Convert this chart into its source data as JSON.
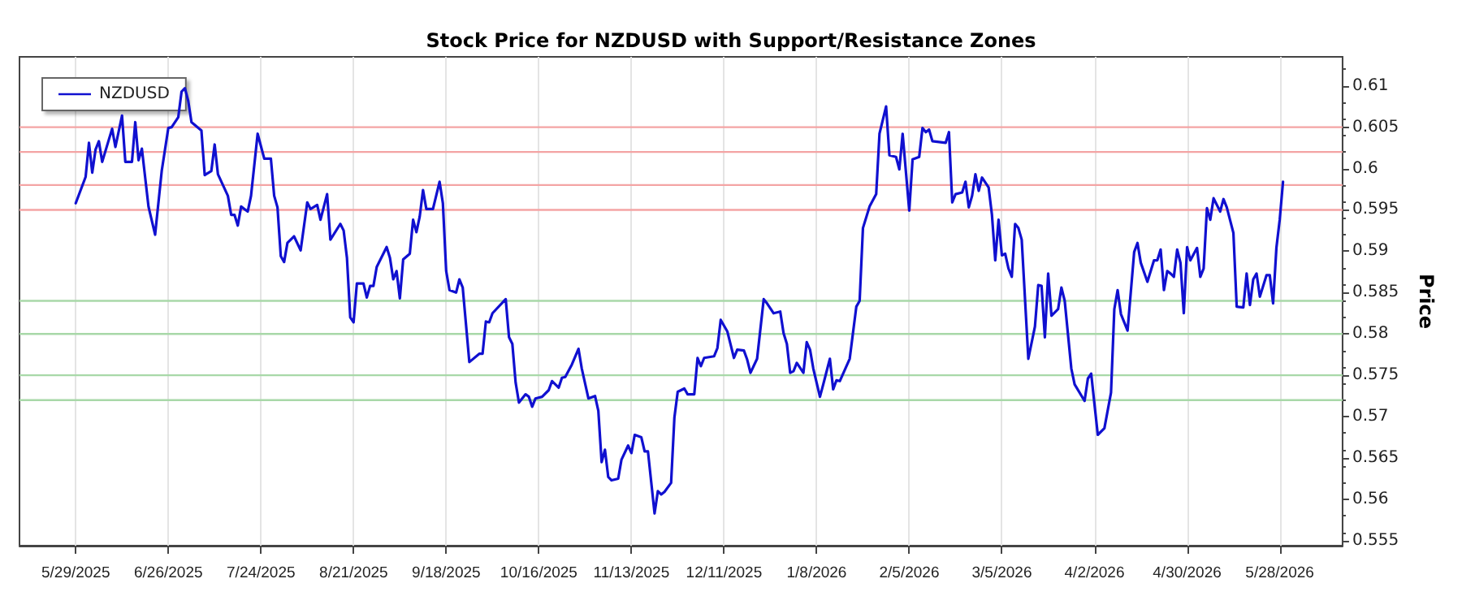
{
  "chart_data": {
    "type": "line",
    "title": "Stock Price for NZDUSD with Support/Resistance Zones",
    "ylabel": "Price",
    "x": [
      "2025-05-29",
      "2025-06-01",
      "2025-06-02",
      "2025-06-03",
      "2025-06-04",
      "2025-06-05",
      "2025-06-06",
      "2025-06-09",
      "2025-06-10",
      "2025-06-12",
      "2025-06-13",
      "2025-06-15",
      "2025-06-16",
      "2025-06-17",
      "2025-06-18",
      "2025-06-20",
      "2025-06-22",
      "2025-06-24",
      "2025-06-26",
      "2025-06-27",
      "2025-06-29",
      "2025-06-30",
      "2025-07-01",
      "2025-07-02",
      "2025-07-03",
      "2025-07-06",
      "2025-07-07",
      "2025-07-09",
      "2025-07-10",
      "2025-07-11",
      "2025-07-14",
      "2025-07-15",
      "2025-07-16",
      "2025-07-17",
      "2025-07-18",
      "2025-07-20",
      "2025-07-21",
      "2025-07-23",
      "2025-07-25",
      "2025-07-27",
      "2025-07-28",
      "2025-07-29",
      "2025-07-30",
      "2025-07-31",
      "2025-08-01",
      "2025-08-03",
      "2025-08-05",
      "2025-08-07",
      "2025-08-08",
      "2025-08-10",
      "2025-08-11",
      "2025-08-13",
      "2025-08-14",
      "2025-08-17",
      "2025-08-18",
      "2025-08-19",
      "2025-08-20",
      "2025-08-21",
      "2025-08-22",
      "2025-08-24",
      "2025-08-25",
      "2025-08-26",
      "2025-08-27",
      "2025-08-28",
      "2025-08-31",
      "2025-09-01",
      "2025-09-02",
      "2025-09-03",
      "2025-09-04",
      "2025-09-05",
      "2025-09-07",
      "2025-09-08",
      "2025-09-09",
      "2025-09-10",
      "2025-09-11",
      "2025-09-12",
      "2025-09-14",
      "2025-09-16",
      "2025-09-17",
      "2025-09-18",
      "2025-09-19",
      "2025-09-21",
      "2025-09-22",
      "2025-09-23",
      "2025-09-25",
      "2025-09-28",
      "2025-09-29",
      "2025-09-30",
      "2025-10-01",
      "2025-10-02",
      "2025-10-06",
      "2025-10-07",
      "2025-10-08",
      "2025-10-09",
      "2025-10-10",
      "2025-10-12",
      "2025-10-13",
      "2025-10-14",
      "2025-10-15",
      "2025-10-17",
      "2025-10-19",
      "2025-10-20",
      "2025-10-22",
      "2025-10-23",
      "2025-10-24",
      "2025-10-26",
      "2025-10-28",
      "2025-10-29",
      "2025-10-31",
      "2025-11-02",
      "2025-11-03",
      "2025-11-04",
      "2025-11-05",
      "2025-11-06",
      "2025-11-07",
      "2025-11-09",
      "2025-11-10",
      "2025-11-12",
      "2025-11-13",
      "2025-11-14",
      "2025-11-16",
      "2025-11-17",
      "2025-11-18",
      "2025-11-20",
      "2025-11-21",
      "2025-11-22",
      "2025-11-23",
      "2025-11-25",
      "2025-11-26",
      "2025-11-27",
      "2025-11-29",
      "2025-11-30",
      "2025-12-02",
      "2025-12-03",
      "2025-12-04",
      "2025-12-05",
      "2025-12-08",
      "2025-12-09",
      "2025-12-10",
      "2025-12-12",
      "2025-12-14",
      "2025-12-15",
      "2025-12-17",
      "2025-12-18",
      "2025-12-19",
      "2025-12-21",
      "2025-12-23",
      "2025-12-24",
      "2025-12-26",
      "2025-12-28",
      "2025-12-29",
      "2025-12-30",
      "2025-12-31",
      "2026-01-01",
      "2026-01-02",
      "2026-01-04",
      "2026-01-05",
      "2026-01-06",
      "2026-01-07",
      "2026-01-09",
      "2026-01-10",
      "2026-01-12",
      "2026-01-13",
      "2026-01-14",
      "2026-01-15",
      "2026-01-18",
      "2026-01-20",
      "2026-01-21",
      "2026-01-22",
      "2026-01-24",
      "2026-01-26",
      "2026-01-27",
      "2026-01-29",
      "2026-01-30",
      "2026-02-01",
      "2026-02-02",
      "2026-02-03",
      "2026-02-05",
      "2026-02-06",
      "2026-02-08",
      "2026-02-09",
      "2026-02-10",
      "2026-02-11",
      "2026-02-12",
      "2026-02-16",
      "2026-02-17",
      "2026-02-18",
      "2026-02-19",
      "2026-02-21",
      "2026-02-22",
      "2026-02-23",
      "2026-02-24",
      "2026-02-25",
      "2026-02-26",
      "2026-02-27",
      "2026-03-01",
      "2026-03-02",
      "2026-03-03",
      "2026-03-04",
      "2026-03-05",
      "2026-03-06",
      "2026-03-07",
      "2026-03-08",
      "2026-03-09",
      "2026-03-10",
      "2026-03-11",
      "2026-03-13",
      "2026-03-15",
      "2026-03-16",
      "2026-03-17",
      "2026-03-18",
      "2026-03-19",
      "2026-03-20",
      "2026-03-22",
      "2026-03-23",
      "2026-03-24",
      "2026-03-26",
      "2026-03-27",
      "2026-03-30",
      "2026-03-31",
      "2026-04-01",
      "2026-04-03",
      "2026-04-05",
      "2026-04-07",
      "2026-04-08",
      "2026-04-09",
      "2026-04-10",
      "2026-04-12",
      "2026-04-14",
      "2026-04-15",
      "2026-04-16",
      "2026-04-18",
      "2026-04-20",
      "2026-04-21",
      "2026-04-22",
      "2026-04-23",
      "2026-04-24",
      "2026-04-25",
      "2026-04-26",
      "2026-04-27",
      "2026-04-28",
      "2026-04-29",
      "2026-04-30",
      "2026-05-01",
      "2026-05-03",
      "2026-05-04",
      "2026-05-05",
      "2026-05-06",
      "2026-05-07",
      "2026-05-08",
      "2026-05-10",
      "2026-05-11",
      "2026-05-12",
      "2026-05-14",
      "2026-05-15",
      "2026-05-17",
      "2026-05-18",
      "2026-05-19",
      "2026-05-20",
      "2026-05-21",
      "2026-05-22",
      "2026-05-24",
      "2026-05-25",
      "2026-05-26",
      "2026-05-27",
      "2026-05-28",
      "2026-05-29"
    ],
    "series": [
      {
        "name": "NZDUSD",
        "color": "#1010d0",
        "values": [
          0.5958,
          0.599,
          0.6031,
          0.5995,
          0.6023,
          0.6033,
          0.6008,
          0.6048,
          0.6026,
          0.6064,
          0.6008,
          0.6008,
          0.6056,
          0.601,
          0.6024,
          0.5954,
          0.592,
          0.5997,
          0.6049,
          0.605,
          0.6062,
          0.6093,
          0.6097,
          0.6082,
          0.6056,
          0.6046,
          0.5992,
          0.5997,
          0.6029,
          0.5993,
          0.5967,
          0.5944,
          0.5944,
          0.5931,
          0.5954,
          0.5948,
          0.5967,
          0.6042,
          0.6012,
          0.6012,
          0.5967,
          0.5953,
          0.5894,
          0.5887,
          0.591,
          0.5918,
          0.5901,
          0.5959,
          0.5951,
          0.5956,
          0.5938,
          0.5969,
          0.5914,
          0.5933,
          0.5925,
          0.5892,
          0.582,
          0.5814,
          0.5861,
          0.5861,
          0.5844,
          0.5858,
          0.5858,
          0.5881,
          0.5905,
          0.5892,
          0.5866,
          0.5876,
          0.5843,
          0.589,
          0.5897,
          0.5938,
          0.5923,
          0.5942,
          0.5974,
          0.5951,
          0.5951,
          0.5984,
          0.5958,
          0.5876,
          0.5853,
          0.585,
          0.5866,
          0.5856,
          0.5766,
          0.5776,
          0.5776,
          0.5815,
          0.5814,
          0.5825,
          0.5842,
          0.5796,
          0.5788,
          0.5741,
          0.5717,
          0.5727,
          0.5724,
          0.5712,
          0.5722,
          0.5724,
          0.5732,
          0.5743,
          0.5735,
          0.5747,
          0.5748,
          0.5763,
          0.5782,
          0.5758,
          0.5722,
          0.5725,
          0.5707,
          0.5645,
          0.566,
          0.5627,
          0.5623,
          0.5625,
          0.5648,
          0.5665,
          0.5656,
          0.5678,
          0.5675,
          0.5658,
          0.5658,
          0.5583,
          0.561,
          0.5606,
          0.5609,
          0.562,
          0.5699,
          0.573,
          0.5734,
          0.5727,
          0.5727,
          0.5771,
          0.5761,
          0.5771,
          0.5773,
          0.5783,
          0.5817,
          0.5803,
          0.5771,
          0.5781,
          0.578,
          0.5769,
          0.5753,
          0.577,
          0.5842,
          0.5837,
          0.5825,
          0.5827,
          0.5801,
          0.5788,
          0.5753,
          0.5755,
          0.5765,
          0.5753,
          0.579,
          0.5781,
          0.5758,
          0.5724,
          0.5739,
          0.577,
          0.5733,
          0.5744,
          0.5743,
          0.577,
          0.5833,
          0.584,
          0.5928,
          0.5954,
          0.5969,
          0.6042,
          0.6075,
          0.6016,
          0.6014,
          0.5999,
          0.6042,
          0.5949,
          0.6011,
          0.6014,
          0.6049,
          0.6044,
          0.6047,
          0.6033,
          0.6031,
          0.6044,
          0.5959,
          0.5969,
          0.5971,
          0.5984,
          0.5953,
          0.5967,
          0.5993,
          0.5973,
          0.5989,
          0.5977,
          0.5944,
          0.5889,
          0.5938,
          0.5895,
          0.5897,
          0.5879,
          0.5869,
          0.5933,
          0.5928,
          0.5914,
          0.577,
          0.5809,
          0.5859,
          0.5858,
          0.5796,
          0.5873,
          0.5822,
          0.583,
          0.5856,
          0.584,
          0.5758,
          0.5739,
          0.5719,
          0.5746,
          0.5752,
          0.5678,
          0.5686,
          0.5729,
          0.583,
          0.5853,
          0.5824,
          0.5804,
          0.5899,
          0.591,
          0.5886,
          0.5863,
          0.5889,
          0.5889,
          0.5902,
          0.5853,
          0.5876,
          0.5873,
          0.5869,
          0.5902,
          0.5886,
          0.5825,
          0.5905,
          0.5889,
          0.5904,
          0.5869,
          0.5879,
          0.5952,
          0.5938,
          0.5964,
          0.5948,
          0.5963,
          0.5953,
          0.5922,
          0.5833,
          0.5832,
          0.5873,
          0.5835,
          0.5866,
          0.5873,
          0.5845,
          0.5871,
          0.5871,
          0.5837,
          0.5904,
          0.5938,
          0.5984
        ]
      }
    ],
    "xlim": [
      "2025-05-12",
      "2026-06-16"
    ],
    "xticks": [
      {
        "value": "2025-05-29",
        "label": "5/29/2025"
      },
      {
        "value": "2025-06-26",
        "label": "6/26/2025"
      },
      {
        "value": "2025-07-24",
        "label": "7/24/2025"
      },
      {
        "value": "2025-08-21",
        "label": "8/21/2025"
      },
      {
        "value": "2025-09-18",
        "label": "9/18/2025"
      },
      {
        "value": "2025-10-16",
        "label": "10/16/2025"
      },
      {
        "value": "2025-11-13",
        "label": "11/13/2025"
      },
      {
        "value": "2025-12-11",
        "label": "12/11/2025"
      },
      {
        "value": "2026-01-08",
        "label": "1/8/2026"
      },
      {
        "value": "2026-02-05",
        "label": "2/5/2026"
      },
      {
        "value": "2026-03-05",
        "label": "3/5/2026"
      },
      {
        "value": "2026-04-02",
        "label": "4/2/2026"
      },
      {
        "value": "2026-04-30",
        "label": "4/30/2026"
      },
      {
        "value": "2026-05-28",
        "label": "5/28/2026"
      }
    ],
    "ylim": [
      0.5544,
      0.6135
    ],
    "yticks": [
      0.555,
      0.56,
      0.565,
      0.57,
      0.575,
      0.58,
      0.585,
      0.59,
      0.595,
      0.6,
      0.605,
      0.61
    ],
    "ref_lines": [
      {
        "axis": "y",
        "value": 0.605,
        "color": "#f4a4a4"
      },
      {
        "axis": "y",
        "value": 0.602,
        "color": "#f4a4a4"
      },
      {
        "axis": "y",
        "value": 0.598,
        "color": "#f4a4a4"
      },
      {
        "axis": "y",
        "value": 0.595,
        "color": "#f4a4a4"
      },
      {
        "axis": "y",
        "value": 0.584,
        "color": "#a8d8a8"
      },
      {
        "axis": "y",
        "value": 0.58,
        "color": "#a8d8a8"
      },
      {
        "axis": "y",
        "value": 0.575,
        "color": "#a8d8a8"
      },
      {
        "axis": "y",
        "value": 0.572,
        "color": "#a8d8a8"
      }
    ],
    "grid": "x",
    "legend": "top left",
    "line_style": "solid"
  }
}
